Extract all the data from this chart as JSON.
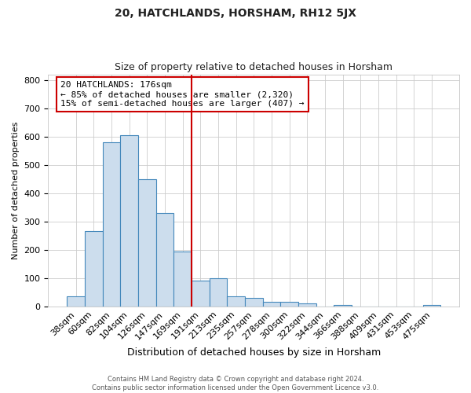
{
  "title": "20, HATCHLANDS, HORSHAM, RH12 5JX",
  "subtitle": "Size of property relative to detached houses in Horsham",
  "xlabel": "Distribution of detached houses by size in Horsham",
  "ylabel": "Number of detached properties",
  "footer_line1": "Contains HM Land Registry data © Crown copyright and database right 2024.",
  "footer_line2": "Contains public sector information licensed under the Open Government Licence v3.0.",
  "categories": [
    "38sqm",
    "60sqm",
    "82sqm",
    "104sqm",
    "126sqm",
    "147sqm",
    "169sqm",
    "191sqm",
    "213sqm",
    "235sqm",
    "257sqm",
    "278sqm",
    "300sqm",
    "322sqm",
    "344sqm",
    "366sqm",
    "388sqm",
    "409sqm",
    "431sqm",
    "453sqm",
    "475sqm"
  ],
  "values": [
    35,
    265,
    580,
    605,
    450,
    330,
    195,
    90,
    100,
    35,
    30,
    15,
    15,
    10,
    0,
    5,
    0,
    0,
    0,
    0,
    5
  ],
  "bar_color": "#ccdded",
  "bar_edge_color": "#4488bb",
  "grid_color": "#cccccc",
  "background_color": "#ffffff",
  "ax_background_color": "#ffffff",
  "vline_x_index": 6.5,
  "vline_color": "#cc0000",
  "annotation_text": "20 HATCHLANDS: 176sqm\n← 85% of detached houses are smaller (2,320)\n15% of semi-detached houses are larger (407) →",
  "annotation_box_color": "#ffffff",
  "annotation_box_edge": "#cc0000",
  "ylim": [
    0,
    820
  ],
  "yticks": [
    0,
    100,
    200,
    300,
    400,
    500,
    600,
    700,
    800
  ],
  "title_fontsize": 10,
  "subtitle_fontsize": 9,
  "ylabel_fontsize": 8,
  "xlabel_fontsize": 9,
  "tick_fontsize": 8,
  "annotation_fontsize": 8,
  "footer_fontsize": 6
}
